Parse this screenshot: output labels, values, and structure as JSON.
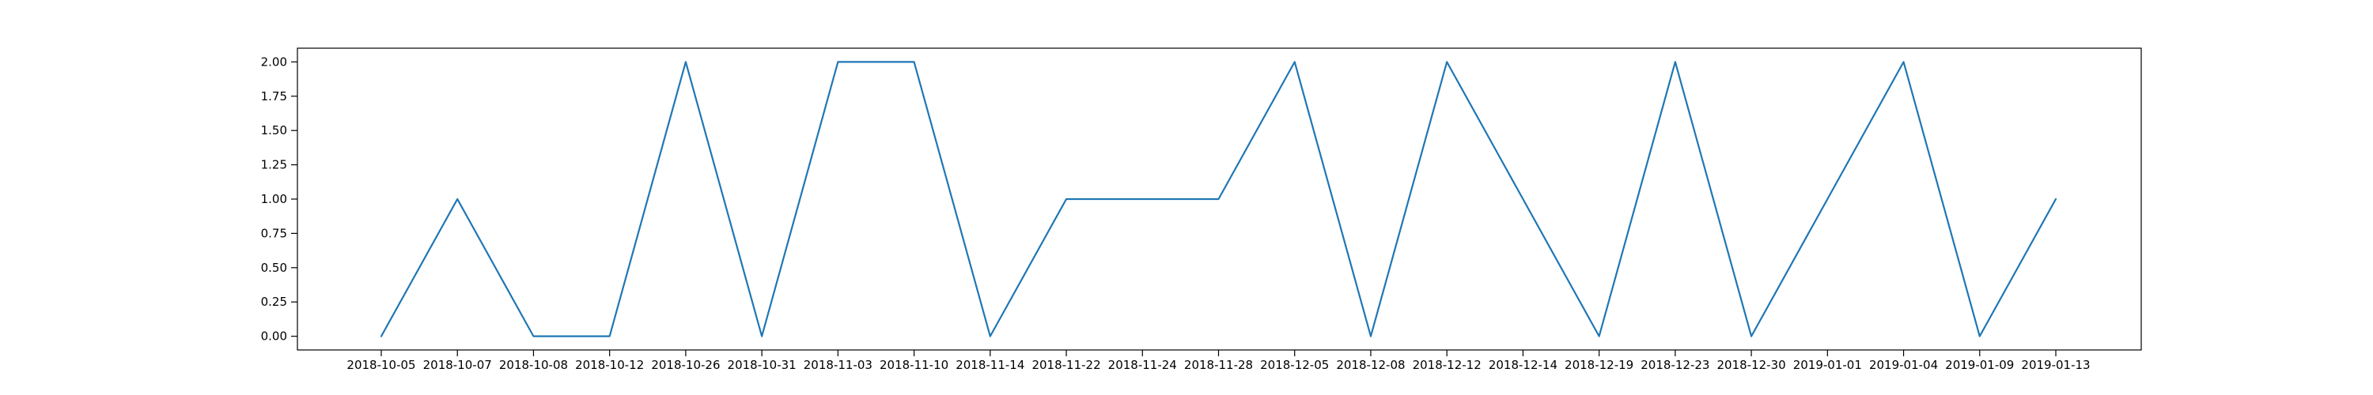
{
  "chart_data": {
    "type": "line",
    "categories": [
      "2018-10-05",
      "2018-10-07",
      "2018-10-08",
      "2018-10-12",
      "2018-10-26",
      "2018-10-31",
      "2018-11-03",
      "2018-11-10",
      "2018-11-14",
      "2018-11-22",
      "2018-11-24",
      "2018-11-28",
      "2018-12-05",
      "2018-12-08",
      "2018-12-12",
      "2018-12-14",
      "2018-12-19",
      "2018-12-23",
      "2018-12-30",
      "2019-01-01",
      "2019-01-04",
      "2019-01-09",
      "2019-01-13"
    ],
    "series": [
      {
        "values": [
          0,
          1,
          0,
          0,
          2,
          0,
          2,
          2,
          0,
          1,
          1,
          1,
          2,
          0,
          2,
          1,
          0,
          2,
          0,
          1,
          2,
          0,
          1
        ]
      }
    ],
    "title": "",
    "xlabel": "",
    "ylabel": "",
    "ylim": [
      -0.1,
      2.1
    ],
    "yticks": [
      "0.00",
      "0.25",
      "0.50",
      "0.75",
      "1.00",
      "1.25",
      "1.50",
      "1.75",
      "2.00"
    ],
    "grid": false,
    "line_color": "#1f77b4"
  }
}
